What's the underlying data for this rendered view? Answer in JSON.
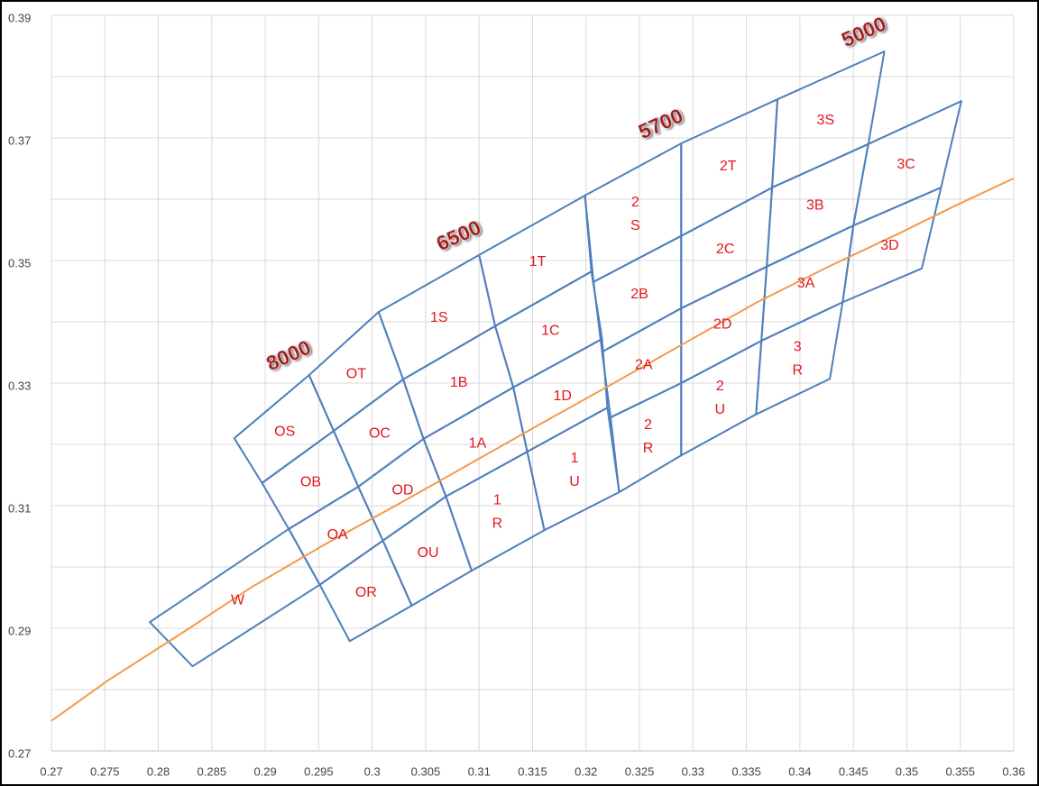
{
  "chart_data": {
    "type": "bins",
    "xlim": [
      0.27,
      0.36
    ],
    "ylim": [
      0.27,
      0.39
    ],
    "xticks": [
      0.27,
      0.275,
      0.28,
      0.285,
      0.29,
      0.295,
      0.3,
      0.305,
      0.31,
      0.315,
      0.32,
      0.325,
      0.33,
      0.335,
      0.34,
      0.345,
      0.35,
      0.355,
      0.36
    ],
    "yticks": [
      0.27,
      0.29,
      0.31,
      0.33,
      0.35,
      0.37,
      0.39
    ],
    "yminor": [
      0.28,
      0.3,
      0.32,
      0.34,
      0.36,
      0.38
    ],
    "grid": true,
    "bin_color": "#4f7fbd",
    "label_color": "#e3161d",
    "curve": {
      "color": "#f39a4c",
      "x": [
        0.27,
        0.2753,
        0.2821,
        0.2888,
        0.2956,
        0.3023,
        0.3091,
        0.3158,
        0.3226,
        0.3293,
        0.336,
        0.3428,
        0.3495,
        0.3546,
        0.36
      ],
      "y": [
        0.2749,
        0.2815,
        0.2891,
        0.2968,
        0.3037,
        0.3101,
        0.3168,
        0.3234,
        0.33,
        0.3366,
        0.3432,
        0.3491,
        0.3546,
        0.359,
        0.3634
      ]
    },
    "groups": [
      {
        "label": "8000",
        "bins": [
          {
            "label": [
              "OS"
            ],
            "x": [
              0.2871,
              0.2941,
              0.2964,
              0.2897
            ],
            "y": [
              0.321,
              0.3313,
              0.3222,
              0.3137
            ]
          },
          {
            "label": [
              "OB"
            ],
            "x": [
              0.2897,
              0.2964,
              0.2987,
              0.2922
            ],
            "y": [
              0.3137,
              0.3222,
              0.3131,
              0.3062
            ]
          },
          {
            "label": [
              "OA"
            ],
            "x": [
              0.2922,
              0.2987,
              0.301,
              0.2951
            ],
            "y": [
              0.3062,
              0.3131,
              0.3043,
              0.2971
            ]
          },
          {
            "label": [
              "OR"
            ],
            "x": [
              0.2951,
              0.301,
              0.3037,
              0.2979
            ],
            "y": [
              0.2971,
              0.3043,
              0.2937,
              0.2879
            ]
          },
          {
            "label": [
              "OT"
            ],
            "x": [
              0.2941,
              0.3006,
              0.3029,
              0.2964
            ],
            "y": [
              0.3313,
              0.3416,
              0.3306,
              0.3222
            ]
          },
          {
            "label": [
              "OC"
            ],
            "x": [
              0.2964,
              0.3029,
              0.3048,
              0.2987
            ],
            "y": [
              0.3222,
              0.3306,
              0.3209,
              0.3131
            ]
          },
          {
            "label": [
              "OD"
            ],
            "x": [
              0.2987,
              0.3048,
              0.3069,
              0.301
            ],
            "y": [
              0.3131,
              0.3209,
              0.3115,
              0.3043
            ]
          },
          {
            "label": [
              "OU"
            ],
            "x": [
              0.301,
              0.3069,
              0.3093,
              0.3037
            ],
            "y": [
              0.3043,
              0.3115,
              0.2994,
              0.2937
            ]
          },
          {
            "label": [
              "W"
            ],
            "x": [
              0.2792,
              0.2922,
              0.2951,
              0.2832
            ],
            "y": [
              0.291,
              0.3062,
              0.2971,
              0.2838
            ]
          }
        ]
      },
      {
        "label": "6500",
        "bins": [
          {
            "label": [
              "1S"
            ],
            "x": [
              0.3006,
              0.31,
              0.3115,
              0.3029
            ],
            "y": [
              0.3416,
              0.3509,
              0.3393,
              0.3306
            ]
          },
          {
            "label": [
              "1B"
            ],
            "x": [
              0.3029,
              0.3115,
              0.3132,
              0.3048
            ],
            "y": [
              0.3306,
              0.3393,
              0.3293,
              0.3209
            ]
          },
          {
            "label": [
              "1A"
            ],
            "x": [
              0.3048,
              0.3132,
              0.3145,
              0.3069
            ],
            "y": [
              0.3209,
              0.3293,
              0.3188,
              0.3115
            ]
          },
          {
            "label": [
              "1",
              "R"
            ],
            "x": [
              0.3069,
              0.3145,
              0.3161,
              0.3093
            ],
            "y": [
              0.3115,
              0.3188,
              0.306,
              0.2994
            ]
          },
          {
            "label": [
              "1T"
            ],
            "x": [
              0.31,
              0.3199,
              0.3205,
              0.3115
            ],
            "y": [
              0.3509,
              0.3606,
              0.3482,
              0.3393
            ]
          },
          {
            "label": [
              "1C"
            ],
            "x": [
              0.3115,
              0.3205,
              0.3215,
              0.3132
            ],
            "y": [
              0.3393,
              0.3482,
              0.3372,
              0.3293
            ]
          },
          {
            "label": [
              "1D"
            ],
            "x": [
              0.3132,
              0.3215,
              0.322,
              0.3145
            ],
            "y": [
              0.3293,
              0.3372,
              0.326,
              0.3188
            ]
          },
          {
            "label": [
              "1",
              "U"
            ],
            "x": [
              0.3145,
              0.322,
              0.3231,
              0.3161
            ],
            "y": [
              0.3188,
              0.326,
              0.3122,
              0.306
            ]
          }
        ]
      },
      {
        "label": "5700",
        "bins": [
          {
            "label": [
              "2",
              "S"
            ],
            "x": [
              0.3199,
              0.3289,
              0.3289,
              0.3207
            ],
            "y": [
              0.3606,
              0.3691,
              0.354,
              0.3465
            ]
          },
          {
            "label": [
              "2B"
            ],
            "x": [
              0.3207,
              0.3289,
              0.3289,
              0.3215
            ],
            "y": [
              0.3465,
              0.354,
              0.3422,
              0.3351
            ]
          },
          {
            "label": [
              "2A"
            ],
            "x": [
              0.3215,
              0.3289,
              0.3289,
              0.3223
            ],
            "y": [
              0.3351,
              0.3422,
              0.33,
              0.3244
            ]
          },
          {
            "label": [
              "2",
              "R"
            ],
            "x": [
              0.3223,
              0.3289,
              0.3289,
              0.3231
            ],
            "y": [
              0.3244,
              0.33,
              0.3182,
              0.3122
            ]
          },
          {
            "label": [
              "2T"
            ],
            "x": [
              0.3289,
              0.3379,
              0.3374,
              0.3289
            ],
            "y": [
              0.3691,
              0.3763,
              0.3619,
              0.354
            ]
          },
          {
            "label": [
              "2C"
            ],
            "x": [
              0.3289,
              0.3374,
              0.3369,
              0.3289
            ],
            "y": [
              0.354,
              0.3619,
              0.349,
              0.3422
            ]
          },
          {
            "label": [
              "2D"
            ],
            "x": [
              0.3289,
              0.3369,
              0.3364,
              0.3289
            ],
            "y": [
              0.3422,
              0.349,
              0.3369,
              0.33
            ]
          },
          {
            "label": [
              "2",
              "U"
            ],
            "x": [
              0.3289,
              0.3364,
              0.3359,
              0.3289
            ],
            "y": [
              0.33,
              0.3369,
              0.3249,
              0.3182
            ]
          }
        ]
      },
      {
        "label": "5000",
        "bins": [
          {
            "label": [
              "3S"
            ],
            "x": [
              0.3379,
              0.3479,
              0.3464,
              0.3374
            ],
            "y": [
              0.3763,
              0.3841,
              0.369,
              0.3619
            ]
          },
          {
            "label": [
              "3B"
            ],
            "x": [
              0.3374,
              0.3464,
              0.345,
              0.3369
            ],
            "y": [
              0.3619,
              0.369,
              0.3557,
              0.349
            ]
          },
          {
            "label": [
              "3A"
            ],
            "x": [
              0.3369,
              0.345,
              0.344,
              0.3364
            ],
            "y": [
              0.349,
              0.3557,
              0.3432,
              0.3369
            ]
          },
          {
            "label": [
              "3",
              "R"
            ],
            "x": [
              0.3364,
              0.344,
              0.3428,
              0.3359
            ],
            "y": [
              0.3369,
              0.3432,
              0.3307,
              0.3249
            ]
          },
          {
            "label": [
              "3C"
            ],
            "x": [
              0.3464,
              0.3551,
              0.3532,
              0.345
            ],
            "y": [
              0.369,
              0.376,
              0.3619,
              0.3557
            ]
          },
          {
            "label": [
              "3D"
            ],
            "x": [
              0.345,
              0.3532,
              0.3514,
              0.344
            ],
            "y": [
              0.3557,
              0.3619,
              0.3487,
              0.3432
            ]
          }
        ]
      }
    ]
  }
}
